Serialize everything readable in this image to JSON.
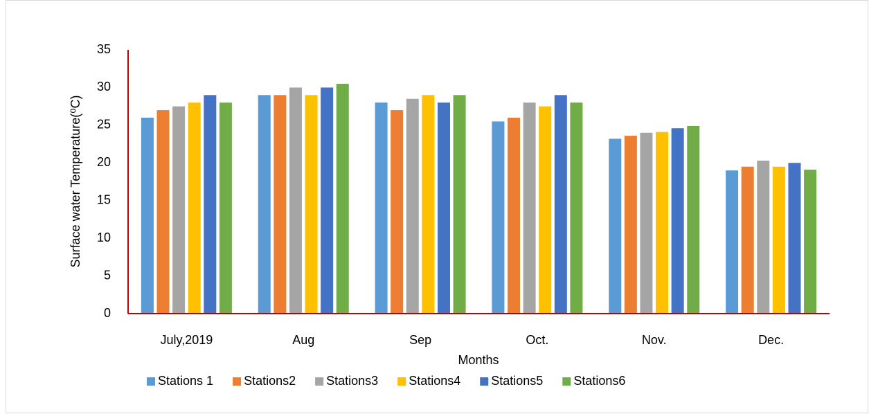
{
  "chart_data": {
    "type": "bar",
    "y_label": "Surface water Temperature(⁰C)",
    "x_label": "Months",
    "categories": [
      "July,2019",
      "Aug",
      "Sep",
      "Oct.",
      "Nov.",
      "Dec."
    ],
    "series": [
      {
        "name": "Stations 1",
        "color": "#5b9bd5",
        "values": [
          26,
          29,
          28,
          25.5,
          23.2,
          19
        ]
      },
      {
        "name": "Stations2",
        "color": "#ed7d31",
        "values": [
          27,
          29,
          27,
          26,
          23.6,
          19.5
        ]
      },
      {
        "name": "Stations3",
        "color": "#a5a5a5",
        "values": [
          27.5,
          30,
          28.5,
          28,
          24,
          20.3
        ]
      },
      {
        "name": "Stations4",
        "color": "#ffc000",
        "values": [
          28,
          29,
          29,
          27.5,
          24.1,
          19.5
        ]
      },
      {
        "name": "Stations5",
        "color": "#4472c4",
        "values": [
          29,
          30,
          28,
          29,
          24.6,
          20
        ]
      },
      {
        "name": "Stations6",
        "color": "#70ad47",
        "values": [
          28,
          30.5,
          29,
          28,
          24.9,
          19.1
        ]
      }
    ],
    "ylim": [
      0,
      35
    ],
    "yticks": [
      0,
      5,
      10,
      15,
      20,
      25,
      30,
      35
    ],
    "grid": false,
    "legend": "bottom",
    "axis_color": "#c00000"
  }
}
